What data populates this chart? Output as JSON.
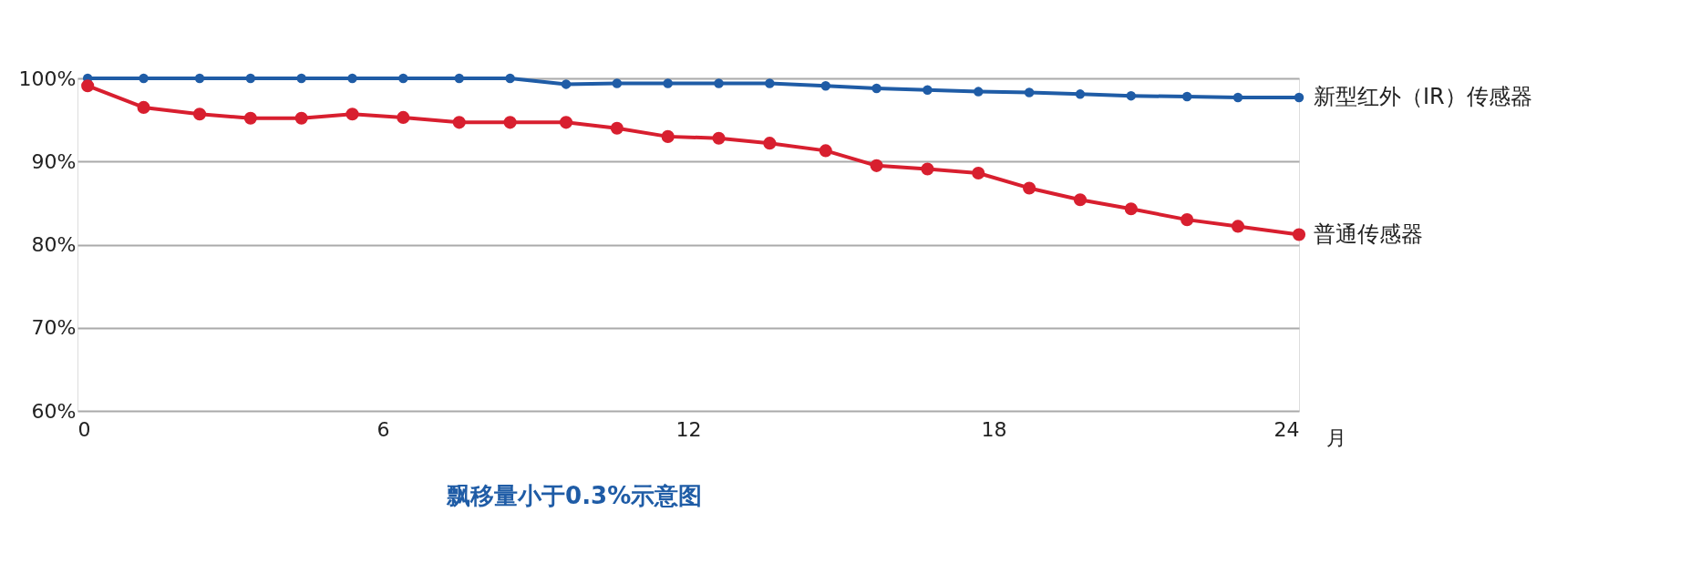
{
  "chart_data": {
    "type": "line",
    "title": "飘移量小于0.3%示意图",
    "xlabel": "月",
    "x": [
      0.2,
      1.3,
      2.4,
      3.4,
      4.4,
      5.4,
      6.4,
      7.5,
      8.5,
      9.6,
      10.6,
      11.6,
      12.6,
      13.6,
      14.7,
      15.7,
      16.7,
      17.7,
      18.7,
      19.7,
      20.7,
      21.8,
      22.8,
      24.0
    ],
    "series": [
      {
        "name": "新型红外（IR）传感器",
        "color": "#1f5ca6",
        "values": [
          100,
          100,
          100,
          100,
          100,
          100,
          100,
          100,
          100,
          99.3,
          99.4,
          99.4,
          99.4,
          99.4,
          99.1,
          98.8,
          98.6,
          98.4,
          98.3,
          98.1,
          97.9,
          97.8,
          97.7,
          97.7
        ]
      },
      {
        "name": "普通传感器",
        "color": "#d81f2f",
        "values": [
          99.1,
          96.5,
          95.7,
          95.2,
          95.2,
          95.7,
          95.3,
          94.7,
          94.7,
          94.7,
          94.0,
          93.0,
          92.8,
          92.2,
          91.3,
          89.5,
          89.1,
          88.6,
          86.8,
          85.4,
          84.3,
          83.0,
          82.2,
          81.2
        ]
      }
    ],
    "xlim": [
      0,
      24
    ],
    "xticks": [
      0,
      6,
      12,
      18,
      24
    ],
    "ylim": [
      60,
      100
    ],
    "yticks": [
      {
        "value": 60,
        "label": "60%"
      },
      {
        "value": 70,
        "label": "70%"
      },
      {
        "value": 80,
        "label": "80%"
      },
      {
        "value": 90,
        "label": "90%"
      },
      {
        "value": 100,
        "label": "100%"
      }
    ],
    "grid": "y",
    "marker": "circle",
    "line_style": "solid",
    "legend": false
  }
}
